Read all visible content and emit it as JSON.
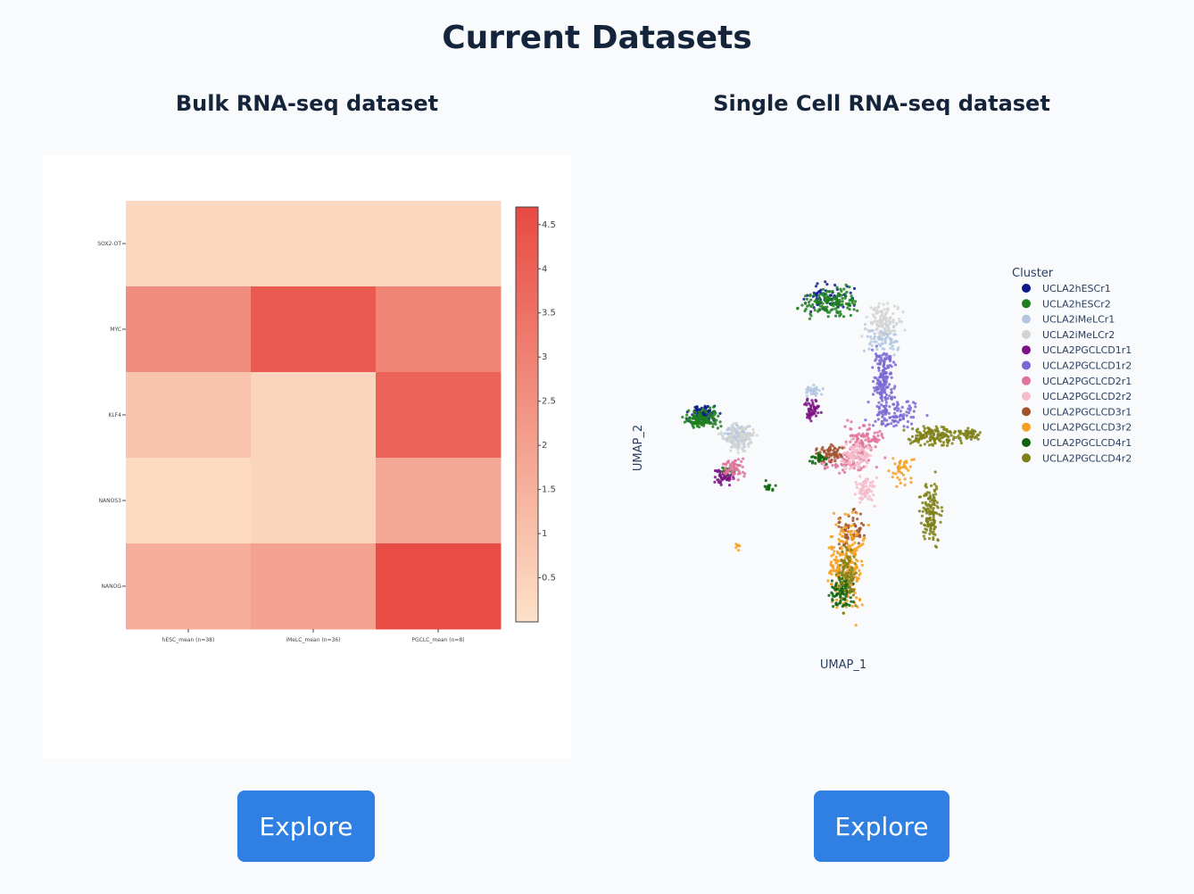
{
  "page": {
    "title": "Current Datasets"
  },
  "sections": {
    "bulk": {
      "title": "Bulk RNA-seq dataset",
      "button_label": "Explore"
    },
    "single_cell": {
      "title": "Single Cell RNA-seq dataset",
      "button_label": "Explore"
    }
  },
  "chart_data": [
    {
      "type": "heatmap",
      "title": "",
      "x_categories": [
        "hESC_mean (n=38)",
        "iMeLC_mean (n=36)",
        "PGCLC_mean (n=8)"
      ],
      "y_categories": [
        "SOX2-OT",
        "MYC",
        "KLF4",
        "NANOS3",
        "NANOG"
      ],
      "values": [
        [
          0.3,
          0.3,
          0.3
        ],
        [
          2.6,
          4.2,
          2.9
        ],
        [
          0.9,
          0.4,
          3.9
        ],
        [
          0.2,
          0.4,
          1.8
        ],
        [
          1.6,
          2.0,
          4.6
        ]
      ],
      "colorscale": {
        "min": 0,
        "max": 4.7,
        "low_color": "#fde1c8",
        "high_color": "#e84a42",
        "ticks": [
          "0.5",
          "1",
          "1.5",
          "2",
          "2.5",
          "3",
          "3.5",
          "4",
          "4.5"
        ],
        "tick_values": [
          0.5,
          1,
          1.5,
          2,
          2.5,
          3,
          3.5,
          4,
          4.5
        ]
      }
    },
    {
      "type": "scatter",
      "title": "",
      "xlabel": "UMAP_1",
      "ylabel": "UMAP_2",
      "grid": false,
      "legend": {
        "title": "Cluster",
        "placement": "right",
        "entries": [
          {
            "name": "UCLA2hESCr1",
            "color": "#0a1a8a"
          },
          {
            "name": "UCLA2hESCr2",
            "color": "#1f7f1f"
          },
          {
            "name": "UCLA2iMeLCr1",
            "color": "#b3c6e0"
          },
          {
            "name": "UCLA2iMeLCr2",
            "color": "#d3d3d3"
          },
          {
            "name": "UCLA2PGCLCD1r1",
            "color": "#7c1285"
          },
          {
            "name": "UCLA2PGCLCD1r2",
            "color": "#7b68d4"
          },
          {
            "name": "UCLA2PGCLCD2r1",
            "color": "#e0739a"
          },
          {
            "name": "UCLA2PGCLCD2r2",
            "color": "#f7bccb"
          },
          {
            "name": "UCLA2PGCLCD3r1",
            "color": "#a0522d"
          },
          {
            "name": "UCLA2PGCLCD3r2",
            "color": "#f5a020"
          },
          {
            "name": "UCLA2PGCLCD4r1",
            "color": "#0f640f"
          },
          {
            "name": "UCLA2PGCLCD4r2",
            "color": "#808018"
          }
        ]
      }
    }
  ]
}
